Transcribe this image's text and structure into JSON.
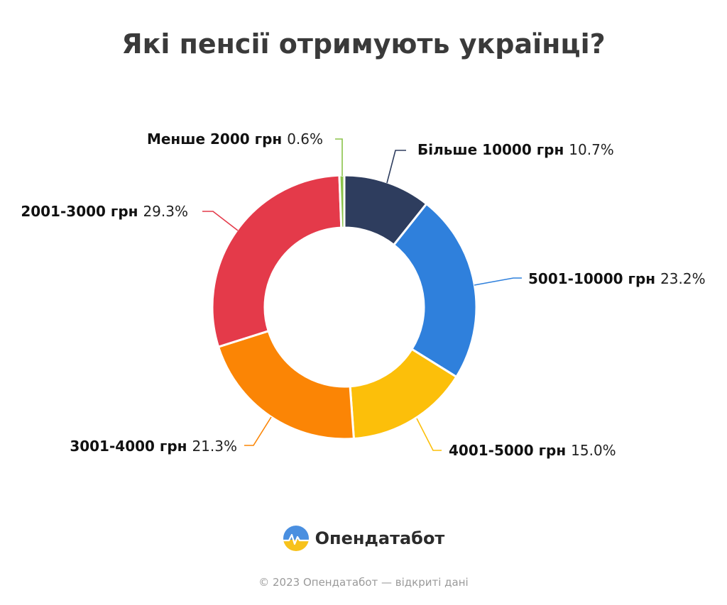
{
  "title": "Які пенсії отримують українці?",
  "chart_data": {
    "type": "pie",
    "donut": true,
    "title": "Які пенсії отримують українці?",
    "unit": "%",
    "slices": [
      {
        "label": "Більше 10000 грн",
        "value": 10.7,
        "value_label": "10.7%",
        "color": "#2e3d5e"
      },
      {
        "label": "5001-10000 грн",
        "value": 23.2,
        "value_label": "23.2%",
        "color": "#2f80dc"
      },
      {
        "label": "4001-5000 грн",
        "value": 15.0,
        "value_label": "15.0%",
        "color": "#fcbf0a"
      },
      {
        "label": "3001-4000 грн",
        "value": 21.3,
        "value_label": "21.3%",
        "color": "#fb8505"
      },
      {
        "label": "2001-3000 грн",
        "value": 29.3,
        "value_label": "29.3%",
        "color": "#e43a4a"
      },
      {
        "label": "Менше 2000 грн",
        "value": 0.6,
        "value_label": "0.6%",
        "color": "#8bc34a"
      }
    ]
  },
  "brand": {
    "name": "Опендатабот",
    "icon": "opendatabot-logo-icon"
  },
  "footer": {
    "copyright": "©  2023 Опендатабот — відкриті дані"
  }
}
